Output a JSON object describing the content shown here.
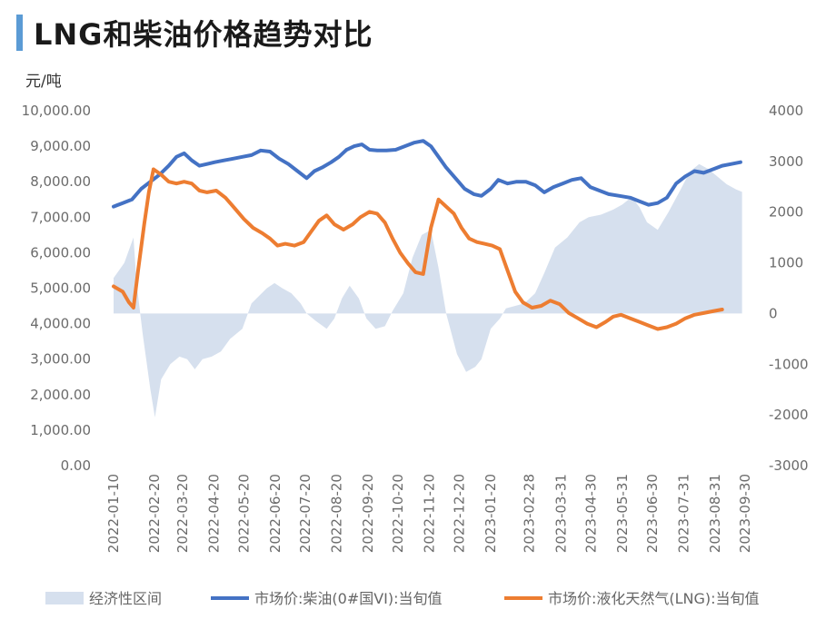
{
  "title": "LNG和柴油价格趋势对比",
  "chart_data": {
    "type": "line",
    "title": "LNG和柴油价格趋势对比",
    "y_left_label": "元/吨",
    "y_left_ticks": [
      "0.00",
      "1,000.00",
      "2,000.00",
      "3,000.00",
      "4,000.00",
      "5,000.00",
      "6,000.00",
      "7,000.00",
      "8,000.00",
      "9,000.00",
      "10,000.00"
    ],
    "y_left_range": [
      0,
      10000
    ],
    "y_right_ticks": [
      "-3000",
      "-2000",
      "-1000",
      "0",
      "1000",
      "2000",
      "3000",
      "4000"
    ],
    "y_right_range": [
      -3000,
      4000
    ],
    "x_range": [
      0,
      20.66
    ],
    "x_ticks": [
      {
        "label": "2022-01-10",
        "x": 0
      },
      {
        "label": "2022-02-20",
        "x": 1.34
      },
      {
        "label": "2022-03-20",
        "x": 2.26
      },
      {
        "label": "2022-04-20",
        "x": 3.28
      },
      {
        "label": "2022-05-20",
        "x": 4.26
      },
      {
        "label": "2022-06-20",
        "x": 5.28
      },
      {
        "label": "2022-07-20",
        "x": 6.26
      },
      {
        "label": "2022-08-20",
        "x": 7.28
      },
      {
        "label": "2022-09-20",
        "x": 8.3
      },
      {
        "label": "2022-10-20",
        "x": 9.28
      },
      {
        "label": "2022-11-20",
        "x": 10.3
      },
      {
        "label": "2022-12-20",
        "x": 11.28
      },
      {
        "label": "2023-01-20",
        "x": 12.3
      },
      {
        "label": "2023-02-28",
        "x": 13.56
      },
      {
        "label": "2023-03-31",
        "x": 14.6
      },
      {
        "label": "2023-04-30",
        "x": 15.58
      },
      {
        "label": "2023-05-31",
        "x": 16.6
      },
      {
        "label": "2023-06-30",
        "x": 17.58
      },
      {
        "label": "2023-07-31",
        "x": 18.6
      },
      {
        "label": "2023-08-31",
        "x": 19.62
      },
      {
        "label": "2023-09-30",
        "x": 20.6
      }
    ],
    "series": [
      {
        "name": "经济性区间",
        "type": "area",
        "axis": "right",
        "color": "#d6e0ee",
        "points": [
          [
            0,
            700
          ],
          [
            0.35,
            1000
          ],
          [
            0.65,
            1500
          ],
          [
            0.75,
            600
          ],
          [
            0.95,
            -400
          ],
          [
            1.2,
            -1500
          ],
          [
            1.35,
            -2050
          ],
          [
            1.55,
            -1300
          ],
          [
            1.85,
            -1000
          ],
          [
            2.15,
            -850
          ],
          [
            2.4,
            -900
          ],
          [
            2.65,
            -1100
          ],
          [
            2.9,
            -900
          ],
          [
            3.2,
            -850
          ],
          [
            3.5,
            -750
          ],
          [
            3.8,
            -500
          ],
          [
            4.2,
            -300
          ],
          [
            4.5,
            200
          ],
          [
            5.0,
            500
          ],
          [
            5.25,
            600
          ],
          [
            5.5,
            500
          ],
          [
            5.8,
            400
          ],
          [
            6.1,
            200
          ],
          [
            6.3,
            0
          ],
          [
            6.6,
            -150
          ],
          [
            6.95,
            -300
          ],
          [
            7.2,
            -100
          ],
          [
            7.45,
            300
          ],
          [
            7.7,
            550
          ],
          [
            8.0,
            300
          ],
          [
            8.25,
            -100
          ],
          [
            8.55,
            -300
          ],
          [
            8.85,
            -250
          ],
          [
            9.1,
            50
          ],
          [
            9.45,
            400
          ],
          [
            9.75,
            1100
          ],
          [
            10.05,
            1550
          ],
          [
            10.35,
            1650
          ],
          [
            10.6,
            900
          ],
          [
            10.85,
            0
          ],
          [
            11.2,
            -800
          ],
          [
            11.5,
            -1150
          ],
          [
            11.8,
            -1050
          ],
          [
            12.0,
            -900
          ],
          [
            12.3,
            -300
          ],
          [
            12.6,
            -100
          ],
          [
            12.8,
            100
          ],
          [
            13.1,
            150
          ],
          [
            13.4,
            200
          ],
          [
            13.75,
            400
          ],
          [
            14.05,
            800
          ],
          [
            14.4,
            1300
          ],
          [
            14.8,
            1500
          ],
          [
            15.2,
            1800
          ],
          [
            15.5,
            1900
          ],
          [
            15.9,
            1950
          ],
          [
            16.3,
            2050
          ],
          [
            16.6,
            2150
          ],
          [
            16.9,
            2300
          ],
          [
            17.15,
            2100
          ],
          [
            17.4,
            1800
          ],
          [
            17.75,
            1650
          ],
          [
            18.1,
            2000
          ],
          [
            18.5,
            2450
          ],
          [
            18.8,
            2800
          ],
          [
            19.1,
            2950
          ],
          [
            19.4,
            2850
          ],
          [
            19.7,
            2700
          ],
          [
            20.0,
            2550
          ],
          [
            20.3,
            2450
          ],
          [
            20.5,
            2400
          ]
        ]
      },
      {
        "name": "市场价:柴油(0#国VI):当旬值",
        "type": "line",
        "axis": "left",
        "color": "#4472c4",
        "points": [
          [
            0,
            7300
          ],
          [
            0.3,
            7400
          ],
          [
            0.6,
            7500
          ],
          [
            0.9,
            7800
          ],
          [
            1.2,
            8000
          ],
          [
            1.5,
            8200
          ],
          [
            1.8,
            8450
          ],
          [
            2.05,
            8700
          ],
          [
            2.3,
            8800
          ],
          [
            2.55,
            8600
          ],
          [
            2.8,
            8450
          ],
          [
            3.05,
            8500
          ],
          [
            3.3,
            8550
          ],
          [
            3.6,
            8600
          ],
          [
            3.9,
            8650
          ],
          [
            4.2,
            8700
          ],
          [
            4.5,
            8750
          ],
          [
            4.8,
            8880
          ],
          [
            5.1,
            8850
          ],
          [
            5.4,
            8650
          ],
          [
            5.7,
            8500
          ],
          [
            6.0,
            8300
          ],
          [
            6.3,
            8100
          ],
          [
            6.55,
            8300
          ],
          [
            6.8,
            8400
          ],
          [
            7.1,
            8550
          ],
          [
            7.35,
            8700
          ],
          [
            7.6,
            8900
          ],
          [
            7.85,
            9000
          ],
          [
            8.1,
            9050
          ],
          [
            8.35,
            8900
          ],
          [
            8.6,
            8880
          ],
          [
            8.9,
            8880
          ],
          [
            9.2,
            8900
          ],
          [
            9.5,
            9000
          ],
          [
            9.8,
            9100
          ],
          [
            10.1,
            9150
          ],
          [
            10.35,
            9000
          ],
          [
            10.6,
            8700
          ],
          [
            10.85,
            8400
          ],
          [
            11.15,
            8100
          ],
          [
            11.45,
            7800
          ],
          [
            11.75,
            7650
          ],
          [
            12.0,
            7600
          ],
          [
            12.3,
            7800
          ],
          [
            12.55,
            8050
          ],
          [
            12.85,
            7950
          ],
          [
            13.15,
            8000
          ],
          [
            13.45,
            8000
          ],
          [
            13.75,
            7900
          ],
          [
            14.05,
            7700
          ],
          [
            14.35,
            7850
          ],
          [
            14.65,
            7950
          ],
          [
            14.95,
            8050
          ],
          [
            15.25,
            8100
          ],
          [
            15.55,
            7850
          ],
          [
            15.85,
            7750
          ],
          [
            16.15,
            7650
          ],
          [
            16.5,
            7600
          ],
          [
            16.85,
            7550
          ],
          [
            17.15,
            7450
          ],
          [
            17.45,
            7350
          ],
          [
            17.75,
            7400
          ],
          [
            18.05,
            7550
          ],
          [
            18.35,
            7950
          ],
          [
            18.65,
            8150
          ],
          [
            18.95,
            8300
          ],
          [
            19.25,
            8250
          ],
          [
            19.55,
            8350
          ],
          [
            19.85,
            8450
          ],
          [
            20.15,
            8500
          ],
          [
            20.45,
            8550
          ]
        ]
      },
      {
        "name": "市场价:液化天然气(LNG):当旬值",
        "type": "line",
        "axis": "left",
        "color": "#ed7d31",
        "points": [
          [
            0,
            5050
          ],
          [
            0.3,
            4900
          ],
          [
            0.5,
            4600
          ],
          [
            0.65,
            4450
          ],
          [
            0.8,
            5500
          ],
          [
            1.0,
            6800
          ],
          [
            1.15,
            7700
          ],
          [
            1.3,
            8350
          ],
          [
            1.55,
            8200
          ],
          [
            1.8,
            8000
          ],
          [
            2.05,
            7950
          ],
          [
            2.3,
            8000
          ],
          [
            2.55,
            7950
          ],
          [
            2.8,
            7750
          ],
          [
            3.05,
            7700
          ],
          [
            3.35,
            7750
          ],
          [
            3.65,
            7550
          ],
          [
            3.95,
            7250
          ],
          [
            4.25,
            6950
          ],
          [
            4.55,
            6700
          ],
          [
            4.85,
            6550
          ],
          [
            5.1,
            6400
          ],
          [
            5.35,
            6200
          ],
          [
            5.6,
            6250
          ],
          [
            5.9,
            6200
          ],
          [
            6.2,
            6300
          ],
          [
            6.45,
            6600
          ],
          [
            6.7,
            6900
          ],
          [
            6.95,
            7050
          ],
          [
            7.2,
            6800
          ],
          [
            7.5,
            6650
          ],
          [
            7.8,
            6800
          ],
          [
            8.05,
            7000
          ],
          [
            8.35,
            7150
          ],
          [
            8.6,
            7100
          ],
          [
            8.85,
            6850
          ],
          [
            9.1,
            6400
          ],
          [
            9.35,
            6000
          ],
          [
            9.6,
            5700
          ],
          [
            9.85,
            5450
          ],
          [
            10.1,
            5400
          ],
          [
            10.35,
            6700
          ],
          [
            10.6,
            7500
          ],
          [
            10.85,
            7300
          ],
          [
            11.1,
            7100
          ],
          [
            11.35,
            6700
          ],
          [
            11.6,
            6400
          ],
          [
            11.85,
            6300
          ],
          [
            12.1,
            6250
          ],
          [
            12.35,
            6200
          ],
          [
            12.6,
            6100
          ],
          [
            12.85,
            5500
          ],
          [
            13.1,
            4900
          ],
          [
            13.35,
            4600
          ],
          [
            13.65,
            4450
          ],
          [
            13.95,
            4500
          ],
          [
            14.25,
            4650
          ],
          [
            14.55,
            4550
          ],
          [
            14.85,
            4300
          ],
          [
            15.15,
            4150
          ],
          [
            15.45,
            4000
          ],
          [
            15.75,
            3900
          ],
          [
            16.05,
            4050
          ],
          [
            16.3,
            4200
          ],
          [
            16.55,
            4250
          ],
          [
            16.85,
            4150
          ],
          [
            17.15,
            4050
          ],
          [
            17.45,
            3950
          ],
          [
            17.75,
            3850
          ],
          [
            18.05,
            3900
          ],
          [
            18.35,
            4000
          ],
          [
            18.65,
            4150
          ],
          [
            18.95,
            4250
          ],
          [
            19.25,
            4300
          ],
          [
            19.55,
            4350
          ],
          [
            19.85,
            4400
          ]
        ]
      }
    ],
    "legend_position": "bottom"
  }
}
